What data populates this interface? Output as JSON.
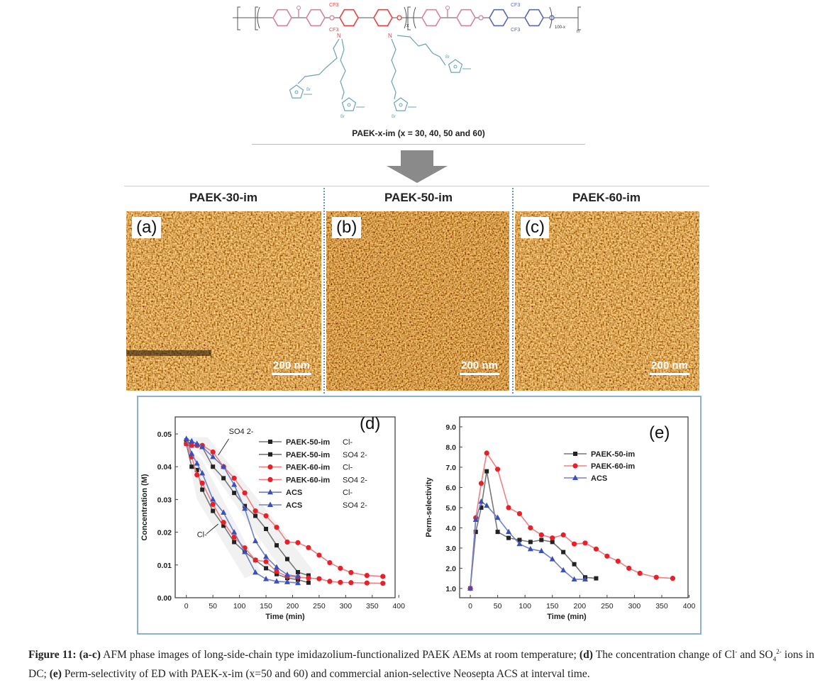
{
  "structure": {
    "title": "PAEK-x-im (x = 30, 40, 50 and 60)",
    "labels": {
      "o": "O",
      "n": "N",
      "cf3": "CF3",
      "br": "Br",
      "x": "x",
      "hundred_minus_x": "100-x",
      "m": "n"
    },
    "colors": {
      "pink": "#d4849a",
      "red": "#e8423f",
      "blue": "#5a68b4",
      "teal": "#6aa3b8"
    }
  },
  "afm": {
    "panels": [
      {
        "header": "PAEK-30-im",
        "label": "(a)",
        "scale": "200 nm"
      },
      {
        "header": "PAEK-50-im",
        "label": "(b)",
        "scale": "200 nm"
      },
      {
        "header": "PAEK-60-im",
        "label": "(c)",
        "scale": "200 nm"
      }
    ]
  },
  "chart_data": [
    {
      "type": "line",
      "panel_label": "(d)",
      "xlabel": "Time (min)",
      "ylabel": "Concentration (M)",
      "xlim": [
        0,
        400
      ],
      "ylim": [
        0,
        0.05
      ],
      "xticks": [
        "0",
        "50",
        "100",
        "150",
        "200",
        "250",
        "300",
        "350",
        "400"
      ],
      "yticks": [
        "0.00",
        "0.01",
        "0.02",
        "0.03",
        "0.04",
        "0.05"
      ],
      "annotations": [
        "SO4 2-",
        "Cl-"
      ],
      "legend_position": "top-right",
      "series": [
        {
          "name": "PAEK-50-im",
          "ion": "Cl-",
          "color": "#222222",
          "line": "#777777",
          "marker": "square",
          "x": [
            0,
            10,
            20,
            30,
            50,
            70,
            90,
            110,
            130,
            150,
            170,
            190,
            210,
            230
          ],
          "y": [
            0.047,
            0.04,
            0.039,
            0.033,
            0.0265,
            0.022,
            0.017,
            0.014,
            0.0115,
            0.009,
            0.0072,
            0.006,
            0.0055,
            0.0046
          ]
        },
        {
          "name": "PAEK-50-im",
          "ion": "SO4 2-",
          "color": "#222222",
          "line": "#777777",
          "marker": "square",
          "x": [
            0,
            10,
            20,
            30,
            50,
            70,
            90,
            110,
            130,
            150,
            170,
            190,
            210,
            230
          ],
          "y": [
            0.048,
            0.0465,
            0.0465,
            0.046,
            0.04,
            0.0365,
            0.032,
            0.028,
            0.025,
            0.021,
            0.016,
            0.0118,
            0.0078,
            0.0068
          ]
        },
        {
          "name": "PAEK-60-im",
          "ion": "Cl-",
          "color": "#e8202a",
          "line": "#f08080",
          "marker": "circle",
          "x": [
            0,
            10,
            20,
            30,
            50,
            70,
            90,
            110,
            130,
            150,
            170,
            190,
            210,
            230,
            250,
            270,
            290,
            310,
            340,
            370
          ],
          "y": [
            0.047,
            0.043,
            0.0375,
            0.035,
            0.0285,
            0.023,
            0.0185,
            0.0152,
            0.0115,
            0.011,
            0.008,
            0.0065,
            0.0063,
            0.006,
            0.0058,
            0.005,
            0.0047,
            0.0046,
            0.0045,
            0.0044
          ]
        },
        {
          "name": "PAEK-60-im",
          "ion": "SO4 2-",
          "color": "#e8202a",
          "line": "#f08080",
          "marker": "circle",
          "x": [
            0,
            10,
            20,
            30,
            50,
            70,
            90,
            110,
            130,
            150,
            170,
            190,
            210,
            230,
            250,
            270,
            290,
            310,
            340,
            370
          ],
          "y": [
            0.047,
            0.0465,
            0.0465,
            0.0465,
            0.0445,
            0.04,
            0.0365,
            0.032,
            0.0265,
            0.025,
            0.0215,
            0.017,
            0.0168,
            0.0153,
            0.013,
            0.0107,
            0.009,
            0.0077,
            0.0068,
            0.0065
          ]
        },
        {
          "name": "ACS",
          "ion": "Cl-",
          "color": "#3a50b8",
          "line": "#7080c8",
          "marker": "triangle",
          "x": [
            0,
            10,
            20,
            30,
            50,
            70,
            90,
            110,
            130,
            150,
            170,
            190,
            210
          ],
          "y": [
            0.0485,
            0.044,
            0.041,
            0.038,
            0.03,
            0.026,
            0.02,
            0.014,
            0.0077,
            0.0057,
            0.005,
            0.0048,
            0.0045
          ]
        },
        {
          "name": "ACS",
          "ion": "SO4 2-",
          "color": "#3a50b8",
          "line": "#7080c8",
          "marker": "triangle",
          "x": [
            0,
            10,
            20,
            30,
            50,
            70,
            90,
            110,
            130,
            150,
            170,
            190,
            210
          ],
          "y": [
            0.0485,
            0.0478,
            0.047,
            0.046,
            0.043,
            0.04,
            0.0345,
            0.0272,
            0.0173,
            0.0125,
            0.0093,
            0.007,
            0.0065
          ]
        }
      ]
    },
    {
      "type": "line",
      "panel_label": "(e)",
      "xlabel": "Time (min)",
      "ylabel": "Perm-selectivity",
      "xlim": [
        0,
        400
      ],
      "ylim": [
        1.0,
        9.0
      ],
      "xticks": [
        "0",
        "50",
        "100",
        "150",
        "200",
        "250",
        "300",
        "350",
        "400"
      ],
      "yticks": [
        "1.0",
        "2.0",
        "3.0",
        "4.0",
        "5.0",
        "6.0",
        "7.0",
        "8.0",
        "9.0"
      ],
      "legend_position": "top-right",
      "series": [
        {
          "name": "PAEK-50-im",
          "color": "#222222",
          "line": "#777777",
          "marker": "square",
          "x": [
            0,
            10,
            20,
            30,
            50,
            70,
            90,
            110,
            130,
            150,
            170,
            190,
            210,
            230
          ],
          "y": [
            1.0,
            3.8,
            5.0,
            6.8,
            3.8,
            3.5,
            3.4,
            3.3,
            3.4,
            3.3,
            2.8,
            2.2,
            1.55,
            1.5
          ]
        },
        {
          "name": "PAEK-60-im",
          "color": "#e8202a",
          "line": "#f08080",
          "marker": "circle",
          "x": [
            0,
            10,
            20,
            30,
            50,
            70,
            90,
            110,
            130,
            150,
            170,
            190,
            210,
            230,
            250,
            270,
            290,
            310,
            340,
            370
          ],
          "y": [
            1.0,
            4.5,
            6.2,
            7.7,
            6.9,
            5.0,
            4.7,
            4.0,
            3.65,
            3.5,
            3.65,
            3.2,
            3.25,
            2.95,
            2.6,
            2.35,
            2.0,
            1.75,
            1.55,
            1.5
          ]
        },
        {
          "name": "ACS",
          "color": "#3a50b8",
          "line": "#7080c8",
          "marker": "triangle",
          "x": [
            0,
            10,
            20,
            30,
            50,
            70,
            90,
            110,
            130,
            150,
            170,
            190,
            210
          ],
          "y": [
            1.0,
            4.4,
            5.3,
            5.1,
            4.5,
            3.8,
            3.2,
            2.95,
            2.85,
            2.45,
            1.9,
            1.45,
            1.45
          ]
        }
      ]
    }
  ],
  "caption": {
    "fig": "Figure 11:",
    "p1_label": "(a-c)",
    "p1": " AFM phase images of long-side-chain type imidazolium-functionalized PAEK AEMs at room temperature; ",
    "p2_label": "(d)",
    "p2a": " The concentration change of Cl",
    "p2_sup1": "-",
    "p2b": " and SO",
    "p2_sub": "4",
    "p2_sup2": "2-",
    "p2c": " ions in DC; ",
    "p3_label": "(e)",
    "p3": " Perm-selectivity of ED with PAEK-x-im (x=50 and 60) and commercial anion-selective Neosepta ACS at interval time."
  }
}
